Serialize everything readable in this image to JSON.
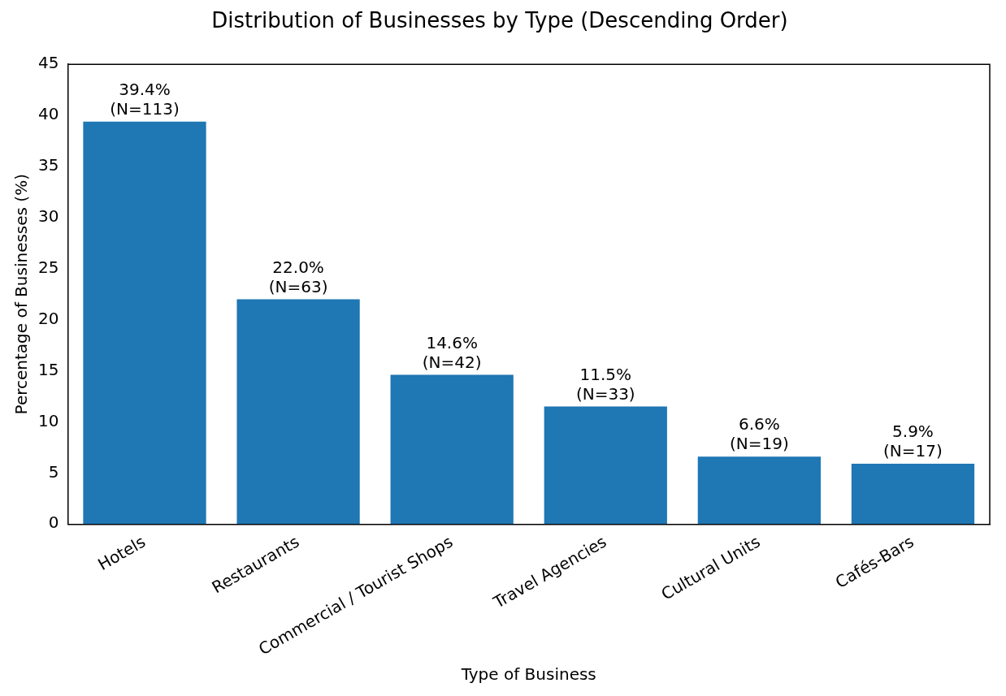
{
  "chart_data": {
    "type": "bar",
    "title": "Distribution of Businesses by Type (Descending Order)",
    "xlabel": "Type of Business",
    "ylabel": "Percentage of Businesses (%)",
    "categories": [
      "Hotels",
      "Restaurants",
      "Commercial / Tourist Shops",
      "Travel Agencies",
      "Cultural Units",
      "Cafés-Bars"
    ],
    "values": [
      39.4,
      22.0,
      14.6,
      11.5,
      6.6,
      5.9
    ],
    "value_labels": [
      "39.4%\n(N=113)",
      "22.0%\n(N=63)",
      "14.6%\n(N=42)",
      "11.5%\n(N=33)",
      "6.6%\n(N=19)",
      "5.9%\n(N=17)"
    ],
    "color": "#1f77b4",
    "ylim": [
      0,
      45
    ],
    "yticks": [
      0,
      5,
      10,
      15,
      20,
      25,
      30,
      35,
      40,
      45
    ],
    "grid": false,
    "legend": false
  }
}
